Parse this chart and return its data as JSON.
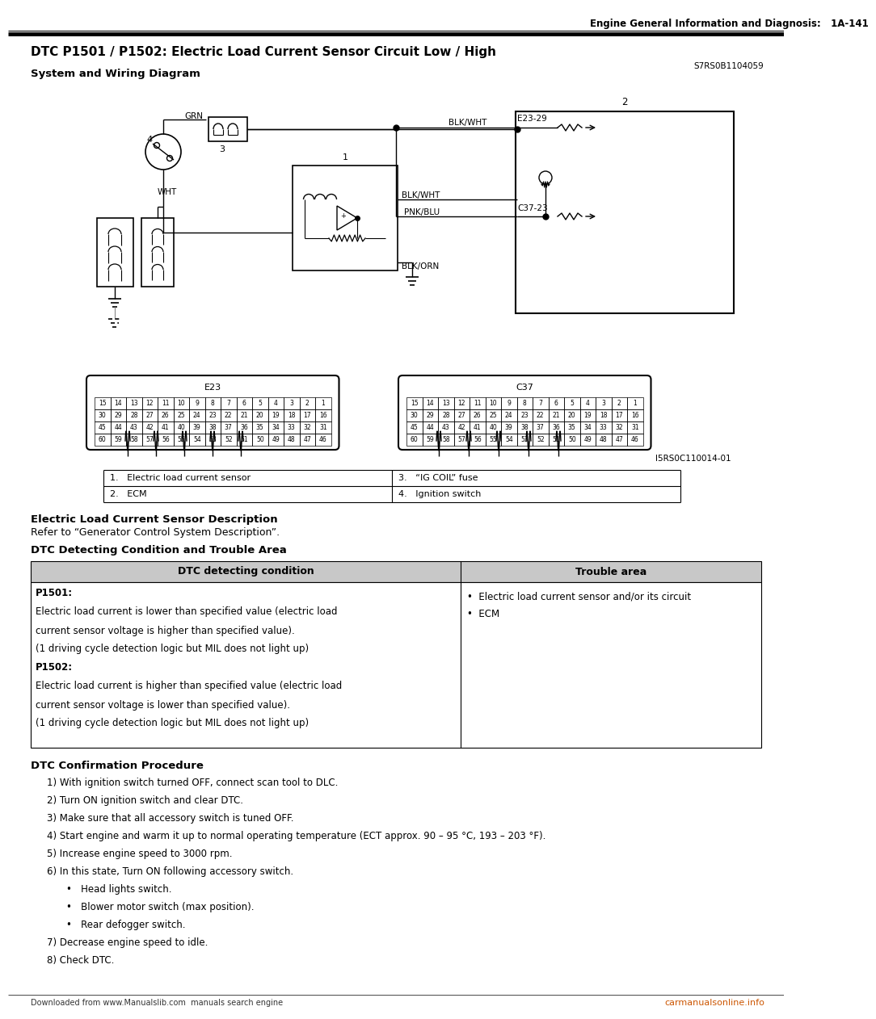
{
  "page_header": "Engine General Information and Diagnosis:   1A-141",
  "title": "DTC P1501 / P1502: Electric Load Current Sensor Circuit Low / High",
  "title_ref": "S7RS0B1104059",
  "subtitle": "System and Wiring Diagram",
  "diagram_ref": "I5RS0C110014-01",
  "legend": [
    [
      "1.   Electric load current sensor",
      "3.   “IG COIL” fuse"
    ],
    [
      "2.   ECM",
      "4.   Ignition switch"
    ]
  ],
  "sensor_desc_title": "Electric Load Current Sensor Description",
  "sensor_desc_body": "Refer to “Generator Control System Description”.",
  "dtc_section_title": "DTC Detecting Condition and Trouble Area",
  "dtc_table_header": [
    "DTC detecting condition",
    "Trouble area"
  ],
  "confirm_title": "DTC Confirmation Procedure",
  "confirm_steps": [
    "1) With ignition switch turned OFF, connect scan tool to DLC.",
    "2) Turn ON ignition switch and clear DTC.",
    "3) Make sure that all accessory switch is tuned OFF.",
    "4) Start engine and warm it up to normal operating temperature (ECT approx. 90 – 95 °C, 193 – 203 °F).",
    "5) Increase engine speed to 3000 rpm.",
    "6) In this state, Turn ON following accessory switch."
  ],
  "confirm_bullets": [
    "•   Head lights switch.",
    "•   Blower motor switch (max position).",
    "•   Rear defogger switch."
  ],
  "confirm_steps2": [
    "7) Decrease engine speed to idle.",
    "8) Check DTC."
  ],
  "footer_left": "Downloaded from www.Manualslib.com  manuals search engine",
  "footer_right": "carmanualsonline.info",
  "e23_rows": [
    [
      "15",
      "14",
      "13",
      "12",
      "11",
      "10",
      "9",
      "8",
      "7",
      "6",
      "5",
      "4",
      "3",
      "2",
      "1"
    ],
    [
      "30",
      "29",
      "28",
      "27",
      "26",
      "25",
      "24",
      "23",
      "22",
      "21",
      "20",
      "19",
      "18",
      "17",
      "16"
    ],
    [
      "45",
      "44",
      "43",
      "42",
      "41",
      "40",
      "39",
      "38",
      "37",
      "36",
      "35",
      "34",
      "33",
      "32",
      "31"
    ],
    [
      "60",
      "59",
      "58",
      "57",
      "56",
      "55",
      "54",
      "53",
      "52",
      "51",
      "50",
      "49",
      "48",
      "47",
      "46"
    ]
  ],
  "c37_rows": [
    [
      "15",
      "14",
      "13",
      "12",
      "11",
      "10",
      "9",
      "8",
      "7",
      "6",
      "5",
      "4",
      "3",
      "2",
      "1"
    ],
    [
      "30",
      "29",
      "28",
      "27",
      "26",
      "25",
      "24",
      "23",
      "22",
      "21",
      "20",
      "19",
      "18",
      "17",
      "16"
    ],
    [
      "45",
      "44",
      "43",
      "42",
      "41",
      "40",
      "39",
      "38",
      "37",
      "36",
      "35",
      "34",
      "33",
      "32",
      "31"
    ],
    [
      "60",
      "59",
      "58",
      "57",
      "56",
      "55",
      "54",
      "53",
      "52",
      "51",
      "50",
      "49",
      "48",
      "47",
      "46"
    ]
  ],
  "bg": "#ffffff",
  "fg": "#000000"
}
